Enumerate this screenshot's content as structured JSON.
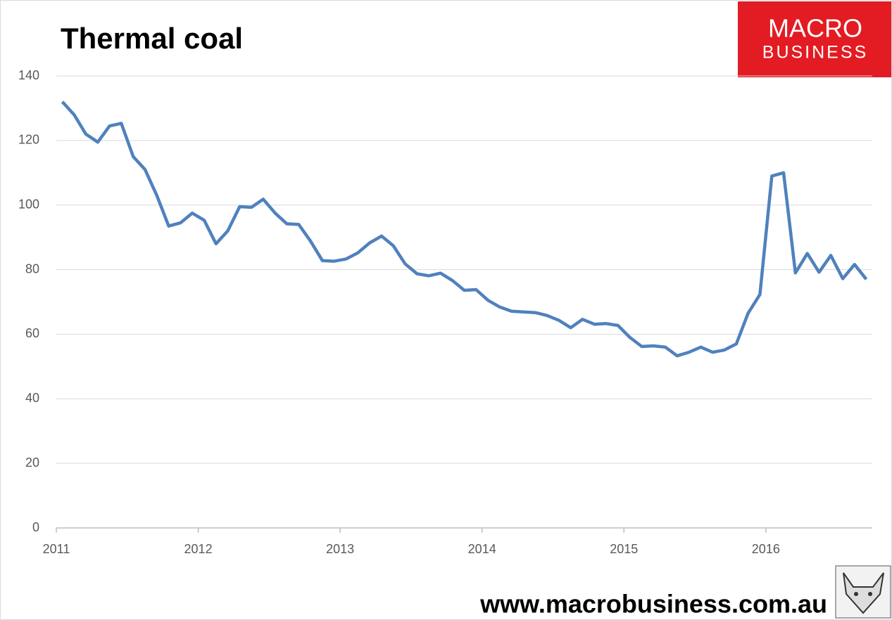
{
  "chart_data": {
    "type": "line",
    "title": "Thermal coal",
    "logo": {
      "line1": "MACRO",
      "line2": "BUSINESS"
    },
    "footer": "www.macrobusiness.com.au",
    "xlim": [
      2011,
      2016.75
    ],
    "xticks": [
      2011,
      2012,
      2013,
      2014,
      2015,
      2016
    ],
    "ylim": [
      0,
      140
    ],
    "yticks": [
      0,
      20,
      40,
      60,
      80,
      100,
      120,
      140
    ],
    "grid": true,
    "series": [
      {
        "color": "#4f81bd",
        "x": [
          2011.042,
          2011.125,
          2011.208,
          2011.292,
          2011.375,
          2011.458,
          2011.542,
          2011.625,
          2011.708,
          2011.792,
          2011.875,
          2011.958,
          2012.042,
          2012.125,
          2012.208,
          2012.292,
          2012.375,
          2012.458,
          2012.542,
          2012.625,
          2012.708,
          2012.792,
          2012.875,
          2012.958,
          2013.042,
          2013.125,
          2013.208,
          2013.292,
          2013.375,
          2013.458,
          2013.542,
          2013.625,
          2013.708,
          2013.792,
          2013.875,
          2013.958,
          2014.042,
          2014.125,
          2014.208,
          2014.292,
          2014.375,
          2014.458,
          2014.542,
          2014.625,
          2014.708,
          2014.792,
          2014.875,
          2014.958,
          2015.042,
          2015.125,
          2015.208,
          2015.292,
          2015.375,
          2015.458,
          2015.542,
          2015.625,
          2015.708,
          2015.792,
          2015.875,
          2015.958,
          2016.042,
          2016.125,
          2016.208,
          2016.292,
          2016.375,
          2016.458,
          2016.542,
          2016.625,
          2016.708
        ],
        "values": [
          132,
          128,
          122,
          119.5,
          124.5,
          125.3,
          115,
          111,
          103,
          93.5,
          94.5,
          97.5,
          95.3,
          88,
          92,
          99.5,
          99.3,
          101.8,
          97.5,
          94.2,
          94,
          88.8,
          82.8,
          82.6,
          83.3,
          85.2,
          88.3,
          90.4,
          87.4,
          81.8,
          78.7,
          78.1,
          78.9,
          76.6,
          73.6,
          73.8,
          70.5,
          68.4,
          67.1,
          66.9,
          66.7,
          65.8,
          64.3,
          62,
          64.6,
          63.1,
          63.3,
          62.7,
          59,
          56.2,
          56.4,
          56,
          53.3,
          54.4,
          56,
          54.4,
          55.1,
          57,
          66.5,
          72.3,
          109,
          110,
          79,
          85,
          79.2,
          84.4,
          77.2,
          81.6,
          77
        ]
      }
    ]
  }
}
